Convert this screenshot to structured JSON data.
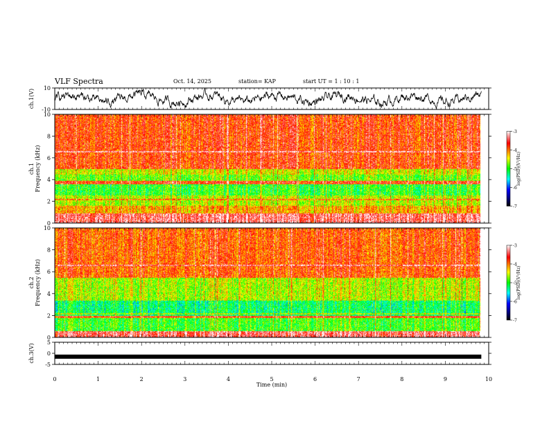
{
  "header": {
    "title": "VLF Spectra",
    "date": "Oct. 14, 2025",
    "station": "station= KAP",
    "start": "start  UT =   1 : 10 : 1"
  },
  "chart_data": [
    {
      "type": "line",
      "name": "ch1-waveform",
      "ylabel": "ch.1(V)",
      "ylim": [
        -10,
        10
      ],
      "yticks": [
        "10",
        "-10"
      ],
      "xlim": [
        0,
        10
      ],
      "color": "#000000"
    },
    {
      "type": "heatmap",
      "name": "ch1-spectrogram",
      "ylabel_top": "ch.1",
      "ylabel": "Frequency (kHz)",
      "ylim": [
        0,
        10
      ],
      "yticks": [
        "0",
        "2",
        "4",
        "6",
        "8",
        "10"
      ],
      "colorbar": {
        "label": "log(PSD)(V²/Hz)",
        "ticks": [
          "-3",
          "-4",
          "-5",
          "-6",
          "-7"
        ],
        "range": [
          -7,
          -3
        ]
      }
    },
    {
      "type": "heatmap",
      "name": "ch2-spectrogram",
      "ylabel_top": "ch.2",
      "ylabel": "Frequency (kHz)",
      "ylim": [
        0,
        10
      ],
      "yticks": [
        "0",
        "2",
        "4",
        "6",
        "8",
        "10"
      ],
      "colorbar": {
        "label": "log(PSD)(V²/Hz)",
        "ticks": [
          "-3",
          "-4",
          "-5",
          "-6",
          "-7"
        ],
        "range": [
          -7,
          -3
        ]
      }
    },
    {
      "type": "line",
      "name": "ch3-waveform",
      "ylabel": "ch.3(V)",
      "ylim": [
        -5,
        5
      ],
      "yticks": [
        "5",
        "0",
        "-5"
      ],
      "xlim": [
        0,
        10
      ],
      "xticks": [
        "0",
        "1",
        "2",
        "3",
        "4",
        "5",
        "6",
        "7",
        "8",
        "9",
        "10"
      ],
      "xlabel": "Time (min)",
      "data_end_min": 9.83,
      "level": -1.5,
      "color": "#000000"
    }
  ]
}
